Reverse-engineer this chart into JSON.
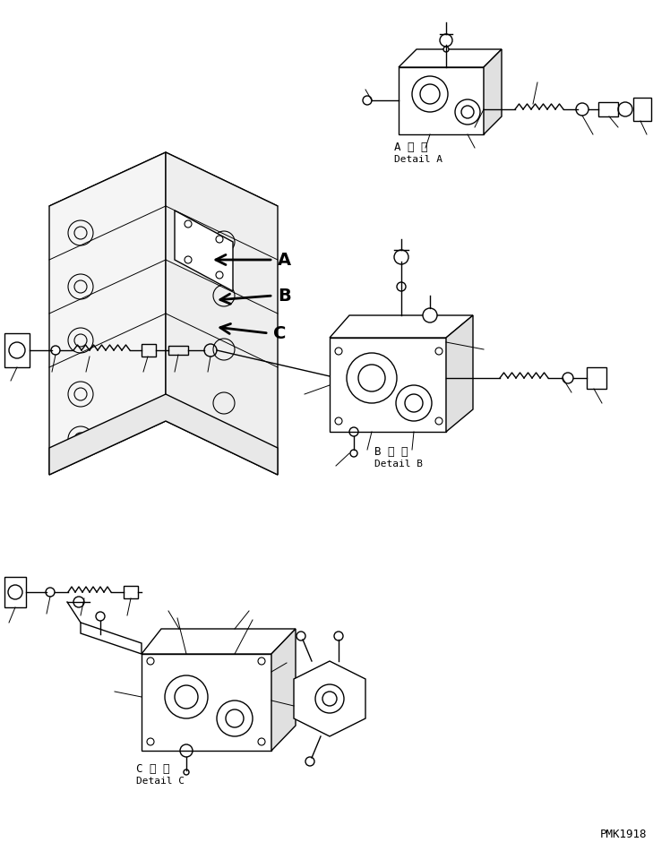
{
  "title": "PMK1918",
  "background_color": "#ffffff",
  "line_color": "#000000",
  "label_A_kanji": "A 詳 細",
  "label_A_roman": "Detail A",
  "label_B_kanji": "B 詳 細",
  "label_B_roman": "Detail B",
  "label_C_kanji": "C 詳 細",
  "label_C_roman": "Detail C",
  "arrow_labels": [
    "A",
    "B",
    "C"
  ],
  "fig_width": 7.29,
  "fig_height": 9.5,
  "dpi": 100
}
